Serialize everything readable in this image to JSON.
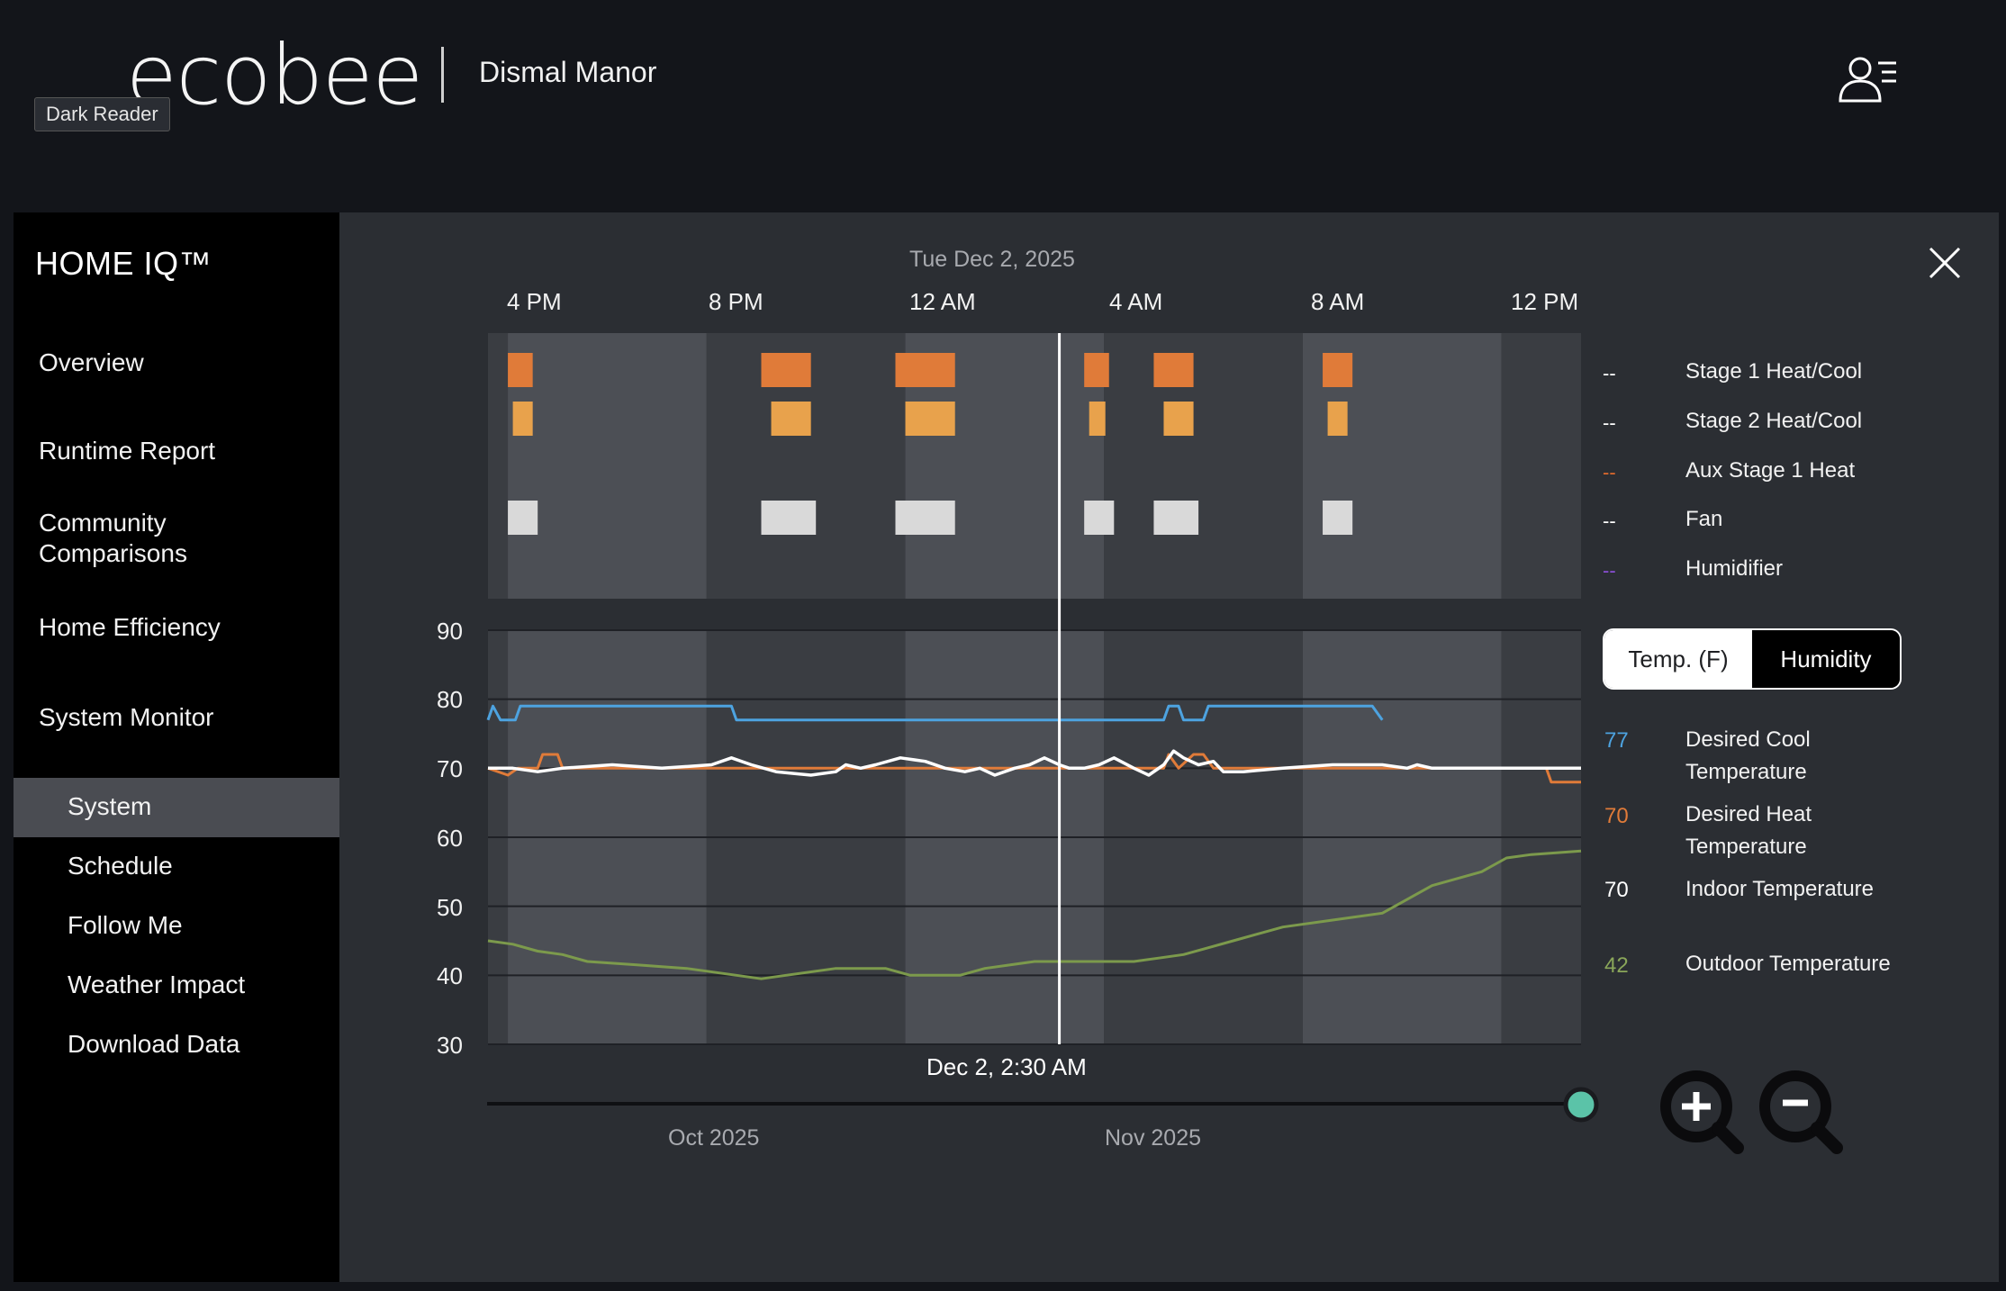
{
  "header": {
    "logo": "ecobee",
    "home_name": "Dismal Manor",
    "extension_badge": "Dark Reader"
  },
  "sidebar": {
    "title": "HOME IQ™",
    "items": [
      {
        "label": "Overview"
      },
      {
        "label": "Runtime Report"
      },
      {
        "label": "Community\nComparisons"
      },
      {
        "label": "Home Efficiency"
      },
      {
        "label": "System Monitor"
      }
    ],
    "sub_items": [
      {
        "label": "System",
        "active": true
      },
      {
        "label": "Schedule"
      },
      {
        "label": "Follow Me"
      },
      {
        "label": "Weather Impact"
      },
      {
        "label": "Download Data"
      }
    ]
  },
  "chart_header": {
    "date": "Tue Dec 2, 2025",
    "time_ticks": [
      "4 PM",
      "8 PM",
      "12 AM",
      "4 AM",
      "8 AM",
      "12 PM"
    ]
  },
  "legend": [
    {
      "value": "--",
      "name": "Stage 1 Heat/Cool",
      "color": "#ffffff"
    },
    {
      "value": "--",
      "name": "Stage 2 Heat/Cool",
      "color": "#ffffff"
    },
    {
      "value": "--",
      "name": "Aux Stage 1 Heat",
      "color": "#e06a2c"
    },
    {
      "value": "--",
      "name": "Fan",
      "color": "#ffffff"
    },
    {
      "value": "--",
      "name": "Humidifier",
      "color": "#8a4fd6"
    }
  ],
  "toggle": {
    "temp_label": "Temp. (F)",
    "humidity_label": "Humidity"
  },
  "metrics": [
    {
      "value": "77",
      "name": "Desired Cool Temperature",
      "color": "#4da3e0"
    },
    {
      "value": "70",
      "name": "Desired Heat Temperature",
      "color": "#e07b39"
    },
    {
      "value": "70",
      "name": "Indoor Temperature",
      "color": "#ffffff"
    },
    {
      "value": "42",
      "name": "Outdoor Temperature",
      "color": "#8aa65a"
    }
  ],
  "cursor_label": "Dec 2, 2:30 AM",
  "timeline": {
    "months": [
      "Oct 2025",
      "Nov 2025"
    ]
  },
  "colors": {
    "cool": "#4da3e0",
    "heat": "#e07b39",
    "indoor": "#ffffff",
    "outdoor": "#7c9a4c",
    "stage1": "#e07b39",
    "stage2": "#e8a24c",
    "fan": "#d9d9d9",
    "accent_dot": "#5bc3a8"
  },
  "chart_data": {
    "type": "line",
    "x_range": [
      "2025-12-01T15:00",
      "2025-12-02T12:30"
    ],
    "y_ticks": [
      90,
      80,
      70,
      60,
      50,
      40,
      30
    ],
    "ylim": [
      30,
      90
    ],
    "series": [
      {
        "name": "Desired Cool Temperature",
        "color": "#4da3e0",
        "points": [
          [
            15.0,
            77
          ],
          [
            15.1,
            79
          ],
          [
            15.25,
            77
          ],
          [
            15.55,
            77
          ],
          [
            15.65,
            79
          ],
          [
            19.9,
            79
          ],
          [
            20.0,
            77
          ],
          [
            28.6,
            77
          ],
          [
            28.7,
            79
          ],
          [
            28.9,
            79
          ],
          [
            29.0,
            77
          ],
          [
            29.4,
            77
          ],
          [
            29.5,
            79
          ],
          [
            32.8,
            79
          ],
          [
            33.0,
            77
          ]
        ]
      },
      {
        "name": "Desired Heat Temperature",
        "color": "#e07b39",
        "points": [
          [
            15.0,
            70
          ],
          [
            15.4,
            69
          ],
          [
            15.6,
            70
          ],
          [
            16.0,
            70
          ],
          [
            16.1,
            72
          ],
          [
            16.4,
            72
          ],
          [
            16.5,
            70
          ],
          [
            28.6,
            70
          ],
          [
            28.7,
            72
          ],
          [
            28.9,
            70
          ],
          [
            29.2,
            72
          ],
          [
            29.4,
            72
          ],
          [
            29.6,
            70
          ],
          [
            36.3,
            70
          ],
          [
            36.4,
            68
          ],
          [
            37.0,
            68
          ]
        ]
      },
      {
        "name": "Indoor Temperature",
        "color": "#ffffff",
        "points": [
          [
            15.0,
            70
          ],
          [
            15.5,
            70
          ],
          [
            16.0,
            69.5
          ],
          [
            16.5,
            70
          ],
          [
            17.5,
            70.5
          ],
          [
            18.5,
            70
          ],
          [
            19.5,
            70.5
          ],
          [
            19.9,
            71.5
          ],
          [
            20.3,
            70.5
          ],
          [
            20.8,
            69.5
          ],
          [
            21.5,
            69
          ],
          [
            22.0,
            69.5
          ],
          [
            22.2,
            70.5
          ],
          [
            22.5,
            70
          ],
          [
            22.8,
            70.5
          ],
          [
            23.3,
            71.5
          ],
          [
            23.8,
            71
          ],
          [
            24.2,
            70
          ],
          [
            24.6,
            69.5
          ],
          [
            24.9,
            70
          ],
          [
            25.2,
            69
          ],
          [
            25.6,
            70
          ],
          [
            25.9,
            70.5
          ],
          [
            26.2,
            71.5
          ],
          [
            26.5,
            70.5
          ],
          [
            26.7,
            70
          ],
          [
            27.0,
            70
          ],
          [
            27.3,
            70.5
          ],
          [
            27.6,
            71.5
          ],
          [
            28.0,
            70
          ],
          [
            28.3,
            69
          ],
          [
            28.6,
            70.5
          ],
          [
            28.8,
            72.5
          ],
          [
            29.0,
            71.5
          ],
          [
            29.3,
            70.5
          ],
          [
            29.6,
            71
          ],
          [
            29.8,
            69.5
          ],
          [
            30.2,
            69.5
          ],
          [
            31.0,
            70
          ],
          [
            32.0,
            70.5
          ],
          [
            33.0,
            70.5
          ],
          [
            33.5,
            70
          ],
          [
            33.7,
            70.5
          ],
          [
            34.0,
            70
          ],
          [
            35.0,
            70
          ],
          [
            36.0,
            70
          ],
          [
            37.0,
            70
          ]
        ]
      },
      {
        "name": "Outdoor Temperature",
        "color": "#7c9a4c",
        "points": [
          [
            15.0,
            45
          ],
          [
            15.5,
            44.5
          ],
          [
            16.0,
            43.5
          ],
          [
            16.5,
            43
          ],
          [
            17.0,
            42
          ],
          [
            18.0,
            41.5
          ],
          [
            19.0,
            41
          ],
          [
            20.0,
            40
          ],
          [
            20.5,
            39.5
          ],
          [
            21.0,
            40
          ],
          [
            22.0,
            41
          ],
          [
            23.0,
            41
          ],
          [
            23.5,
            40
          ],
          [
            24.5,
            40
          ],
          [
            25.0,
            41
          ],
          [
            26.0,
            42
          ],
          [
            27.0,
            42
          ],
          [
            28.0,
            42
          ],
          [
            28.5,
            42.5
          ],
          [
            29.0,
            43
          ],
          [
            29.5,
            44
          ],
          [
            30.0,
            45
          ],
          [
            30.5,
            46
          ],
          [
            31.0,
            47
          ],
          [
            32.0,
            48
          ],
          [
            33.0,
            49
          ],
          [
            34.0,
            53
          ],
          [
            35.0,
            55
          ],
          [
            35.5,
            57
          ],
          [
            36.0,
            57.5
          ],
          [
            37.0,
            58
          ]
        ]
      }
    ],
    "equipment_runs": [
      {
        "name": "Stage 1 Heat/Cool",
        "color": "#e07b39",
        "intervals": [
          [
            15.4,
            15.9
          ],
          [
            20.5,
            21.5
          ],
          [
            23.2,
            24.4
          ],
          [
            27.0,
            27.5
          ],
          [
            28.4,
            29.2
          ],
          [
            31.8,
            32.4
          ]
        ]
      },
      {
        "name": "Stage 2 Heat/Cool",
        "color": "#e8a24c",
        "intervals": [
          [
            15.5,
            15.9
          ],
          [
            20.7,
            21.5
          ],
          [
            23.4,
            24.4
          ],
          [
            27.1,
            27.4
          ],
          [
            28.6,
            29.2
          ],
          [
            31.9,
            32.3
          ]
        ]
      },
      {
        "name": "Fan",
        "color": "#d9d9d9",
        "intervals": [
          [
            15.4,
            16.0
          ],
          [
            20.5,
            21.6
          ],
          [
            23.2,
            24.4
          ],
          [
            27.0,
            27.6
          ],
          [
            28.4,
            29.3
          ],
          [
            31.8,
            32.4
          ]
        ]
      }
    ],
    "cursor_x": 26.5
  }
}
